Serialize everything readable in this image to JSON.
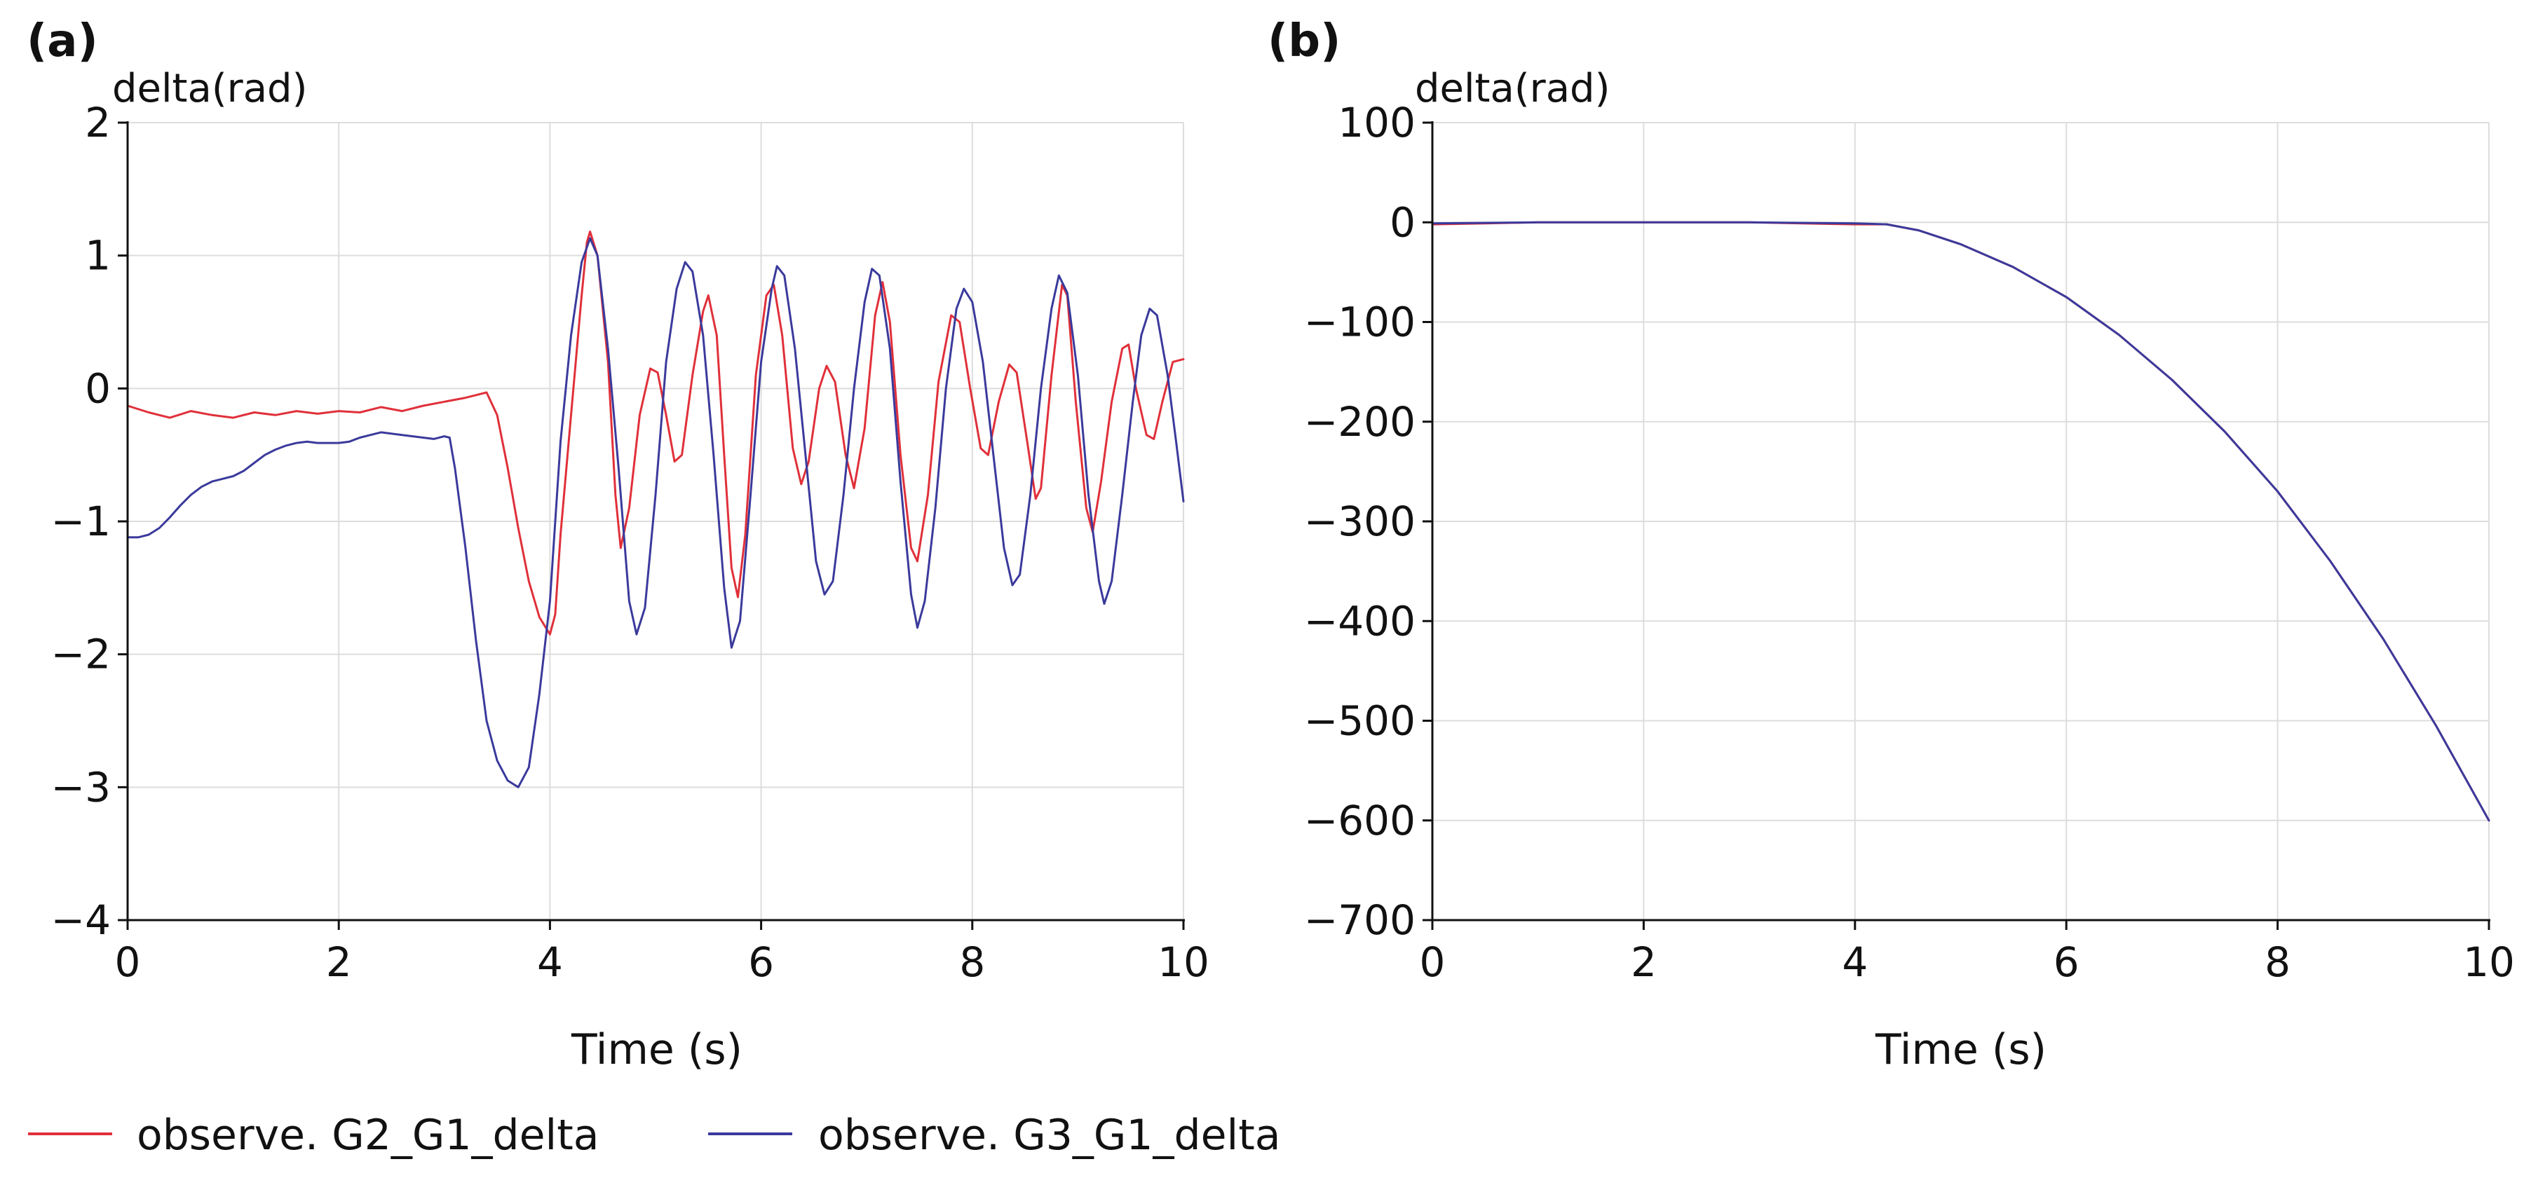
{
  "legend": [
    {
      "name": "observe. G2_G1_delta",
      "color": "#e0303a"
    },
    {
      "name": "observe. G3_G1_delta",
      "color": "#3a3a9c"
    }
  ],
  "chart_data": [
    {
      "type": "line",
      "panel_label": "(a)",
      "ylabel": "delta(rad)",
      "xlabel": "Time (s)",
      "xlim": [
        0,
        10
      ],
      "ylim": [
        -4,
        2
      ],
      "xticks": [
        0,
        2,
        4,
        6,
        8,
        10
      ],
      "yticks": [
        2,
        1,
        0,
        -1,
        -2,
        -3,
        -4
      ],
      "ytick_labels": [
        "2",
        "1",
        "0",
        "−1",
        "−2",
        "−3",
        "−4"
      ],
      "grid": true,
      "series": [
        {
          "name": "observe. G2_G1_delta",
          "color": "#e0303a",
          "points": [
            [
              0,
              -0.13
            ],
            [
              0.2,
              -0.18
            ],
            [
              0.4,
              -0.22
            ],
            [
              0.6,
              -0.17
            ],
            [
              0.8,
              -0.2
            ],
            [
              1.0,
              -0.22
            ],
            [
              1.2,
              -0.18
            ],
            [
              1.4,
              -0.2
            ],
            [
              1.6,
              -0.17
            ],
            [
              1.8,
              -0.19
            ],
            [
              2.0,
              -0.17
            ],
            [
              2.2,
              -0.18
            ],
            [
              2.4,
              -0.14
            ],
            [
              2.6,
              -0.17
            ],
            [
              2.8,
              -0.13
            ],
            [
              3.0,
              -0.1
            ],
            [
              3.2,
              -0.07
            ],
            [
              3.3,
              -0.05
            ],
            [
              3.4,
              -0.03
            ],
            [
              3.5,
              -0.2
            ],
            [
              3.6,
              -0.6
            ],
            [
              3.7,
              -1.05
            ],
            [
              3.8,
              -1.45
            ],
            [
              3.9,
              -1.72
            ],
            [
              4.0,
              -1.85
            ],
            [
              4.05,
              -1.7
            ],
            [
              4.1,
              -1.1
            ],
            [
              4.2,
              -0.2
            ],
            [
              4.3,
              0.7
            ],
            [
              4.35,
              1.1
            ],
            [
              4.38,
              1.18
            ],
            [
              4.45,
              1.0
            ],
            [
              4.55,
              0.2
            ],
            [
              4.62,
              -0.8
            ],
            [
              4.67,
              -1.2
            ],
            [
              4.75,
              -0.9
            ],
            [
              4.85,
              -0.2
            ],
            [
              4.95,
              0.15
            ],
            [
              5.02,
              0.12
            ],
            [
              5.1,
              -0.2
            ],
            [
              5.18,
              -0.55
            ],
            [
              5.25,
              -0.5
            ],
            [
              5.35,
              0.1
            ],
            [
              5.45,
              0.58
            ],
            [
              5.5,
              0.7
            ],
            [
              5.58,
              0.4
            ],
            [
              5.65,
              -0.5
            ],
            [
              5.72,
              -1.35
            ],
            [
              5.78,
              -1.57
            ],
            [
              5.85,
              -1.1
            ],
            [
              5.95,
              0.1
            ],
            [
              6.05,
              0.7
            ],
            [
              6.12,
              0.78
            ],
            [
              6.2,
              0.4
            ],
            [
              6.3,
              -0.45
            ],
            [
              6.38,
              -0.72
            ],
            [
              6.45,
              -0.55
            ],
            [
              6.55,
              0.0
            ],
            [
              6.62,
              0.17
            ],
            [
              6.7,
              0.05
            ],
            [
              6.8,
              -0.5
            ],
            [
              6.88,
              -0.75
            ],
            [
              6.98,
              -0.3
            ],
            [
              7.08,
              0.55
            ],
            [
              7.15,
              0.8
            ],
            [
              7.22,
              0.5
            ],
            [
              7.32,
              -0.5
            ],
            [
              7.42,
              -1.2
            ],
            [
              7.48,
              -1.3
            ],
            [
              7.58,
              -0.8
            ],
            [
              7.68,
              0.05
            ],
            [
              7.8,
              0.55
            ],
            [
              7.88,
              0.5
            ],
            [
              7.98,
              0.0
            ],
            [
              8.08,
              -0.45
            ],
            [
              8.15,
              -0.5
            ],
            [
              8.25,
              -0.1
            ],
            [
              8.35,
              0.18
            ],
            [
              8.42,
              0.12
            ],
            [
              8.52,
              -0.4
            ],
            [
              8.6,
              -0.83
            ],
            [
              8.65,
              -0.75
            ],
            [
              8.75,
              0.1
            ],
            [
              8.85,
              0.78
            ],
            [
              8.9,
              0.7
            ],
            [
              8.98,
              -0.1
            ],
            [
              9.08,
              -0.9
            ],
            [
              9.14,
              -1.08
            ],
            [
              9.22,
              -0.7
            ],
            [
              9.32,
              -0.1
            ],
            [
              9.42,
              0.3
            ],
            [
              9.48,
              0.33
            ],
            [
              9.55,
              0.0
            ],
            [
              9.65,
              -0.35
            ],
            [
              9.72,
              -0.38
            ],
            [
              9.8,
              -0.1
            ],
            [
              9.9,
              0.2
            ],
            [
              10.0,
              0.22
            ]
          ]
        },
        {
          "name": "observe. G3_G1_delta",
          "color": "#3a3a9c",
          "points": [
            [
              0,
              -1.12
            ],
            [
              0.1,
              -1.12
            ],
            [
              0.2,
              -1.1
            ],
            [
              0.3,
              -1.05
            ],
            [
              0.4,
              -0.97
            ],
            [
              0.5,
              -0.88
            ],
            [
              0.6,
              -0.8
            ],
            [
              0.7,
              -0.74
            ],
            [
              0.8,
              -0.7
            ],
            [
              0.9,
              -0.68
            ],
            [
              1.0,
              -0.66
            ],
            [
              1.1,
              -0.62
            ],
            [
              1.2,
              -0.56
            ],
            [
              1.3,
              -0.5
            ],
            [
              1.4,
              -0.46
            ],
            [
              1.5,
              -0.43
            ],
            [
              1.6,
              -0.41
            ],
            [
              1.7,
              -0.4
            ],
            [
              1.8,
              -0.41
            ],
            [
              2.0,
              -0.41
            ],
            [
              2.1,
              -0.4
            ],
            [
              2.2,
              -0.37
            ],
            [
              2.3,
              -0.35
            ],
            [
              2.4,
              -0.33
            ],
            [
              2.6,
              -0.35
            ],
            [
              2.8,
              -0.37
            ],
            [
              2.9,
              -0.38
            ],
            [
              3.0,
              -0.36
            ],
            [
              3.05,
              -0.37
            ],
            [
              3.1,
              -0.6
            ],
            [
              3.2,
              -1.2
            ],
            [
              3.3,
              -1.9
            ],
            [
              3.4,
              -2.5
            ],
            [
              3.5,
              -2.8
            ],
            [
              3.6,
              -2.95
            ],
            [
              3.7,
              -3.0
            ],
            [
              3.8,
              -2.85
            ],
            [
              3.9,
              -2.3
            ],
            [
              4.0,
              -1.6
            ],
            [
              4.1,
              -0.4
            ],
            [
              4.2,
              0.4
            ],
            [
              4.3,
              0.95
            ],
            [
              4.38,
              1.13
            ],
            [
              4.45,
              1.0
            ],
            [
              4.55,
              0.3
            ],
            [
              4.65,
              -0.6
            ],
            [
              4.75,
              -1.6
            ],
            [
              4.82,
              -1.85
            ],
            [
              4.9,
              -1.65
            ],
            [
              5.0,
              -0.8
            ],
            [
              5.1,
              0.2
            ],
            [
              5.2,
              0.75
            ],
            [
              5.28,
              0.95
            ],
            [
              5.35,
              0.88
            ],
            [
              5.45,
              0.4
            ],
            [
              5.55,
              -0.5
            ],
            [
              5.65,
              -1.5
            ],
            [
              5.72,
              -1.95
            ],
            [
              5.8,
              -1.75
            ],
            [
              5.9,
              -0.8
            ],
            [
              6.0,
              0.2
            ],
            [
              6.1,
              0.75
            ],
            [
              6.15,
              0.92
            ],
            [
              6.22,
              0.85
            ],
            [
              6.32,
              0.3
            ],
            [
              6.42,
              -0.5
            ],
            [
              6.52,
              -1.3
            ],
            [
              6.6,
              -1.55
            ],
            [
              6.68,
              -1.45
            ],
            [
              6.78,
              -0.8
            ],
            [
              6.88,
              0.0
            ],
            [
              6.98,
              0.65
            ],
            [
              7.05,
              0.9
            ],
            [
              7.12,
              0.85
            ],
            [
              7.22,
              0.3
            ],
            [
              7.32,
              -0.7
            ],
            [
              7.42,
              -1.55
            ],
            [
              7.48,
              -1.8
            ],
            [
              7.55,
              -1.6
            ],
            [
              7.65,
              -0.9
            ],
            [
              7.75,
              0.0
            ],
            [
              7.85,
              0.6
            ],
            [
              7.92,
              0.75
            ],
            [
              8.0,
              0.65
            ],
            [
              8.1,
              0.2
            ],
            [
              8.2,
              -0.5
            ],
            [
              8.3,
              -1.2
            ],
            [
              8.38,
              -1.48
            ],
            [
              8.45,
              -1.4
            ],
            [
              8.55,
              -0.8
            ],
            [
              8.65,
              0.0
            ],
            [
              8.75,
              0.6
            ],
            [
              8.82,
              0.85
            ],
            [
              8.9,
              0.72
            ],
            [
              9.0,
              0.1
            ],
            [
              9.1,
              -0.8
            ],
            [
              9.2,
              -1.45
            ],
            [
              9.25,
              -1.62
            ],
            [
              9.32,
              -1.45
            ],
            [
              9.42,
              -0.8
            ],
            [
              9.52,
              -0.1
            ],
            [
              9.6,
              0.4
            ],
            [
              9.68,
              0.6
            ],
            [
              9.75,
              0.55
            ],
            [
              9.85,
              0.1
            ],
            [
              9.93,
              -0.4
            ],
            [
              10.0,
              -0.85
            ]
          ]
        }
      ]
    },
    {
      "type": "line",
      "panel_label": "(b)",
      "ylabel": "delta(rad)",
      "xlabel": "Time (s)",
      "xlim": [
        0,
        10
      ],
      "ylim": [
        -700,
        100
      ],
      "xticks": [
        0,
        2,
        4,
        6,
        8,
        10
      ],
      "yticks": [
        100,
        0,
        -100,
        -200,
        -300,
        -400,
        -500,
        -600,
        -700
      ],
      "ytick_labels": [
        "100",
        "0",
        "−100",
        "−200",
        "−300",
        "−400",
        "−500",
        "−600",
        "−700"
      ],
      "grid": true,
      "series": [
        {
          "name": "observe. G2_G1_delta",
          "color": "#e0303a",
          "points": [
            [
              0,
              -2
            ],
            [
              0.5,
              -1
            ],
            [
              1,
              0
            ],
            [
              2,
              0
            ],
            [
              3,
              0
            ],
            [
              3.5,
              -1
            ],
            [
              4,
              -2
            ],
            [
              4.3,
              -2
            ],
            [
              4.6,
              -8
            ],
            [
              5,
              -22
            ],
            [
              5.5,
              -45
            ],
            [
              6,
              -75
            ],
            [
              6.5,
              -113
            ],
            [
              7,
              -158
            ],
            [
              7.5,
              -210
            ],
            [
              8,
              -270
            ],
            [
              8.5,
              -340
            ],
            [
              9,
              -418
            ],
            [
              9.5,
              -505
            ],
            [
              10,
              -600
            ]
          ]
        },
        {
          "name": "observe. G3_G1_delta",
          "color": "#3a3a9c",
          "points": [
            [
              0,
              -1
            ],
            [
              1,
              0
            ],
            [
              2,
              0
            ],
            [
              3,
              0
            ],
            [
              4,
              -1
            ],
            [
              4.3,
              -2
            ],
            [
              4.6,
              -8
            ],
            [
              5,
              -22
            ],
            [
              5.5,
              -45
            ],
            [
              6,
              -75
            ],
            [
              6.5,
              -113
            ],
            [
              7,
              -158
            ],
            [
              7.5,
              -210
            ],
            [
              8,
              -270
            ],
            [
              8.5,
              -340
            ],
            [
              9,
              -418
            ],
            [
              9.5,
              -505
            ],
            [
              10,
              -600
            ]
          ]
        }
      ]
    }
  ]
}
